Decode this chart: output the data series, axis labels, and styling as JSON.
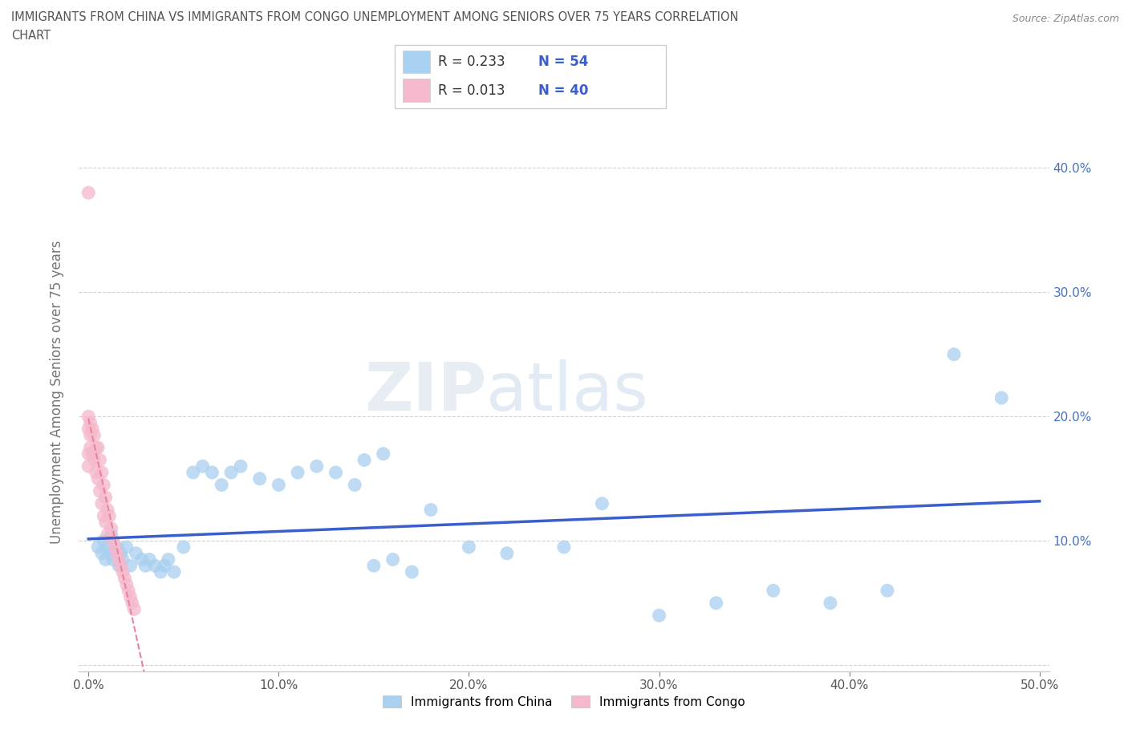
{
  "title_line1": "IMMIGRANTS FROM CHINA VS IMMIGRANTS FROM CONGO UNEMPLOYMENT AMONG SENIORS OVER 75 YEARS CORRELATION",
  "title_line2": "CHART",
  "source": "Source: ZipAtlas.com",
  "ylabel": "Unemployment Among Seniors over 75 years",
  "xlim": [
    -0.005,
    0.505
  ],
  "ylim": [
    -0.005,
    0.445
  ],
  "xticks": [
    0.0,
    0.1,
    0.2,
    0.3,
    0.4,
    0.5
  ],
  "yticks": [
    0.0,
    0.1,
    0.2,
    0.3,
    0.4
  ],
  "xticklabels": [
    "0.0%",
    "10.0%",
    "20.0%",
    "30.0%",
    "40.0%",
    "50.0%"
  ],
  "yticklabels_right": [
    "",
    "10.0%",
    "20.0%",
    "30.0%",
    "40.0%"
  ],
  "china_color": "#a8d0f0",
  "congo_color": "#f5b8cc",
  "china_line_color": "#3a5fcd",
  "congo_line_color": "#e8849a",
  "china_R": 0.233,
  "china_N": 54,
  "congo_R": 0.013,
  "congo_N": 40,
  "legend_label_china": "Immigrants from China",
  "legend_label_congo": "Immigrants from Congo",
  "watermark_ZIP": "ZIP",
  "watermark_atlas": "atlas",
  "china_x": [
    0.005,
    0.007,
    0.008,
    0.009,
    0.01,
    0.011,
    0.012,
    0.013,
    0.014,
    0.015,
    0.016,
    0.017,
    0.018,
    0.02,
    0.022,
    0.025,
    0.028,
    0.03,
    0.032,
    0.035,
    0.038,
    0.04,
    0.042,
    0.045,
    0.05,
    0.055,
    0.06,
    0.065,
    0.07,
    0.075,
    0.08,
    0.09,
    0.1,
    0.11,
    0.12,
    0.13,
    0.14,
    0.15,
    0.16,
    0.17,
    0.18,
    0.2,
    0.22,
    0.25,
    0.27,
    0.3,
    0.33,
    0.36,
    0.39,
    0.42,
    0.145,
    0.155,
    0.455,
    0.48
  ],
  "china_y": [
    0.095,
    0.09,
    0.1,
    0.085,
    0.095,
    0.09,
    0.105,
    0.085,
    0.09,
    0.095,
    0.08,
    0.09,
    0.085,
    0.095,
    0.08,
    0.09,
    0.085,
    0.08,
    0.085,
    0.08,
    0.075,
    0.08,
    0.085,
    0.075,
    0.095,
    0.155,
    0.16,
    0.155,
    0.145,
    0.155,
    0.16,
    0.15,
    0.145,
    0.155,
    0.16,
    0.155,
    0.145,
    0.08,
    0.085,
    0.075,
    0.125,
    0.095,
    0.09,
    0.095,
    0.13,
    0.04,
    0.05,
    0.06,
    0.05,
    0.06,
    0.165,
    0.17,
    0.25,
    0.215
  ],
  "congo_x": [
    0.0,
    0.0,
    0.0,
    0.0,
    0.0,
    0.001,
    0.001,
    0.001,
    0.002,
    0.002,
    0.003,
    0.003,
    0.004,
    0.004,
    0.005,
    0.005,
    0.006,
    0.006,
    0.007,
    0.007,
    0.008,
    0.008,
    0.009,
    0.009,
    0.01,
    0.01,
    0.011,
    0.012,
    0.013,
    0.014,
    0.015,
    0.016,
    0.017,
    0.018,
    0.019,
    0.02,
    0.021,
    0.022,
    0.023,
    0.024
  ],
  "congo_y": [
    0.38,
    0.2,
    0.19,
    0.17,
    0.16,
    0.195,
    0.185,
    0.175,
    0.19,
    0.17,
    0.185,
    0.165,
    0.175,
    0.155,
    0.175,
    0.15,
    0.165,
    0.14,
    0.155,
    0.13,
    0.145,
    0.12,
    0.135,
    0.115,
    0.125,
    0.105,
    0.12,
    0.11,
    0.1,
    0.095,
    0.09,
    0.085,
    0.08,
    0.075,
    0.07,
    0.065,
    0.06,
    0.055,
    0.05,
    0.045
  ]
}
